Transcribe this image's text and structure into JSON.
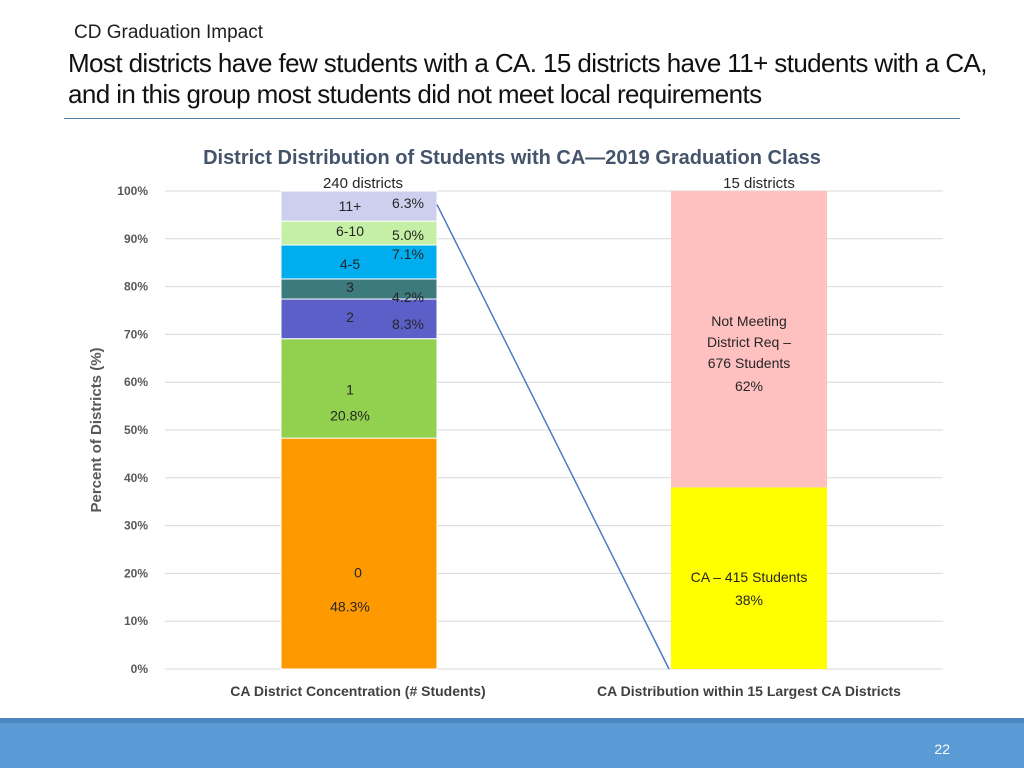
{
  "slide": {
    "kicker": "CD Graduation Impact",
    "headline": "Most districts have few students with a CA. 15 districts have 11+ students with a CA, and in this group most students did not meet local requirements",
    "page_number": "22"
  },
  "colors": {
    "rule": "#4f81a8",
    "footer": "#5b9bd5",
    "title_text": "#44546a",
    "grid": "#d9d9d9",
    "connector": "#4472c4"
  },
  "chart_data": {
    "type": "bar",
    "stacked": true,
    "title": "District Distribution of Students with CA—2019 Graduation Class",
    "ylabel": "Percent of Districts (%)",
    "ylim": [
      0,
      100
    ],
    "yticks": [
      0,
      10,
      20,
      30,
      40,
      50,
      60,
      70,
      80,
      90,
      100
    ],
    "ytick_labels": [
      "0%",
      "10%",
      "20%",
      "30%",
      "40%",
      "50%",
      "60%",
      "70%",
      "80%",
      "90%",
      "100%"
    ],
    "grid": true,
    "categories": [
      "CA District Concentration (# Students)",
      "CA Distribution within 15 Largest CA Districts"
    ],
    "bar_headers": [
      "240 districts",
      "15 districts"
    ],
    "bars": [
      {
        "category": "CA District Concentration (# Students)",
        "segments": [
          {
            "name": "0",
            "value": 48.3,
            "label": "48.3%",
            "color": "#ff9900"
          },
          {
            "name": "1",
            "value": 20.8,
            "label": "20.8%",
            "color": "#92d050"
          },
          {
            "name": "2",
            "value": 8.3,
            "label": "8.3%",
            "color": "#5b5fc7"
          },
          {
            "name": "3",
            "value": 4.2,
            "label": "4.2%",
            "color": "#3c7a7d"
          },
          {
            "name": "4-5",
            "value": 7.1,
            "label": "7.1%",
            "color": "#00aeef"
          },
          {
            "name": "6-10",
            "value": 5.0,
            "label": "5.0%",
            "color": "#c6efa6"
          },
          {
            "name": "11+",
            "value": 6.3,
            "label": "6.3%",
            "color": "#ccd0ee"
          }
        ]
      },
      {
        "category": "CA Distribution within 15 Largest CA Districts",
        "segments": [
          {
            "name": "CA – 415 Students",
            "value": 38,
            "label": "38%",
            "color": "#ffff00"
          },
          {
            "name": "Not Meeting District Req – 676 Students",
            "value": 62,
            "label": "62%",
            "color": "#ffc0c0",
            "name_lines": [
              "Not Meeting",
              "District Req –",
              "676 Students"
            ]
          }
        ]
      }
    ],
    "connector": {
      "from": "top of 11+ segment",
      "to": "base of second bar"
    }
  }
}
